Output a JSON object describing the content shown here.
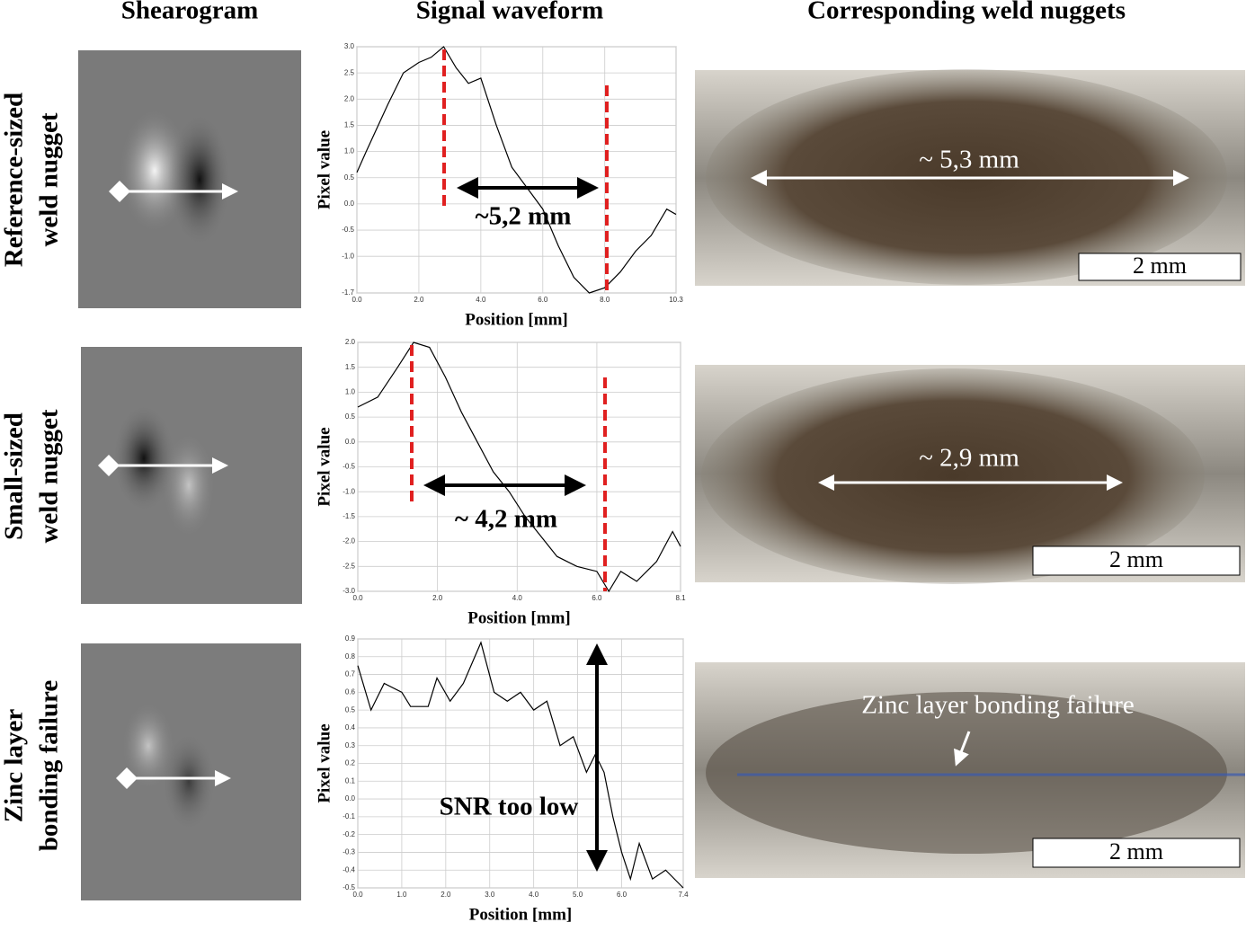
{
  "columns": [
    "Shearogram",
    "Signal waveform",
    "Corresponding weld nuggets"
  ],
  "rows": [
    [
      "Reference-sized",
      "weld nugget"
    ],
    [
      "Small-sized",
      "weld nugget"
    ],
    [
      "Zinc layer",
      "bonding failure"
    ]
  ],
  "nuggets": [
    {
      "label": "~ 5,3 mm",
      "scale": "2 mm"
    },
    {
      "label": "~ 2,9 mm",
      "scale": "2 mm"
    },
    {
      "label": "Zinc layer bonding failure",
      "scale": "2 mm"
    }
  ],
  "chart_data": [
    {
      "type": "line",
      "x_label": "Position [mm]",
      "y_label": "Pixel value",
      "annotation": "~5,2 mm",
      "color": "#000000",
      "grid": true,
      "xlim": [
        0,
        10.3
      ],
      "ylim": [
        -1.7,
        3.0
      ],
      "xticks": [
        {
          "value": 0,
          "label": "0.0"
        },
        {
          "value": 2,
          "label": "2.0"
        },
        {
          "value": 4,
          "label": "4.0"
        },
        {
          "value": 6,
          "label": "6.0"
        },
        {
          "value": 8,
          "label": "8.0"
        },
        10.3
      ],
      "yticks": [
        {
          "value": 3,
          "label": "3.0"
        },
        2.5,
        {
          "value": 2,
          "label": "2.0"
        },
        1.5,
        {
          "value": 1,
          "label": "1.0"
        },
        0.5,
        {
          "value": 0,
          "label": "0.0"
        },
        -0.5,
        {
          "value": -1,
          "label": "-1.0"
        },
        -1.7
      ],
      "x": [
        0,
        0.3,
        1.0,
        1.5,
        2.0,
        2.4,
        2.8,
        3.2,
        3.6,
        4.0,
        4.5,
        5.0,
        5.5,
        6.0,
        6.5,
        7.0,
        7.5,
        8.0,
        8.5,
        9.0,
        9.5,
        10.0,
        10.3
      ],
      "values": [
        0.6,
        1.0,
        1.9,
        2.5,
        2.7,
        2.8,
        3.0,
        2.6,
        2.3,
        2.4,
        1.5,
        0.7,
        0.3,
        -0.1,
        -0.8,
        -1.4,
        -1.7,
        -1.6,
        -1.3,
        -0.9,
        -0.6,
        -0.1,
        -0.2
      ]
    },
    {
      "type": "line",
      "x_label": "Position [mm]",
      "y_label": "Pixel value",
      "annotation": "~ 4,2 mm",
      "color": "#000000",
      "grid": true,
      "xlim": [
        0,
        8.1
      ],
      "ylim": [
        -3.0,
        2.0
      ],
      "xticks": [
        {
          "value": 0,
          "label": "0.0"
        },
        {
          "value": 2,
          "label": "2.0"
        },
        {
          "value": 4,
          "label": "4.0"
        },
        {
          "value": 6,
          "label": "6.0"
        },
        8.1
      ],
      "yticks": [
        {
          "value": 2,
          "label": "2.0"
        },
        1.5,
        {
          "value": 1,
          "label": "1.0"
        },
        0.5,
        {
          "value": 0,
          "label": "0.0"
        },
        -0.5,
        {
          "value": -1,
          "label": "-1.0"
        },
        -1.5,
        {
          "value": -2,
          "label": "-2.0"
        },
        -2.5,
        {
          "value": -3,
          "label": "-3.0"
        }
      ],
      "x": [
        0,
        0.5,
        1.0,
        1.4,
        1.8,
        2.2,
        2.6,
        3.0,
        3.4,
        3.8,
        4.2,
        4.6,
        5.0,
        5.5,
        6.0,
        6.3,
        6.6,
        7.0,
        7.5,
        7.9,
        8.1
      ],
      "values": [
        0.7,
        0.9,
        1.5,
        2.0,
        1.9,
        1.3,
        0.6,
        0.0,
        -0.6,
        -1.0,
        -1.5,
        -1.9,
        -2.3,
        -2.5,
        -2.6,
        -3.0,
        -2.6,
        -2.8,
        -2.4,
        -1.8,
        -2.1
      ]
    },
    {
      "type": "line",
      "x_label": "Position [mm]",
      "y_label": "Pixel value",
      "annotation": "SNR too low",
      "color": "#000000",
      "grid": true,
      "xlim": [
        0,
        7.4
      ],
      "ylim": [
        -0.5,
        0.9
      ],
      "xticks": [
        {
          "value": 0,
          "label": "0.0"
        },
        {
          "value": 1,
          "label": "1.0"
        },
        {
          "value": 2,
          "label": "2.0"
        },
        {
          "value": 3,
          "label": "3.0"
        },
        {
          "value": 4,
          "label": "4.0"
        },
        {
          "value": 5,
          "label": "5.0"
        },
        {
          "value": 6,
          "label": "6.0"
        },
        7.4
      ],
      "yticks": [
        0.9,
        0.8,
        0.7,
        0.6,
        0.5,
        0.4,
        0.3,
        0.2,
        0.1,
        {
          "value": 0,
          "label": "0.0"
        },
        -0.1,
        -0.2,
        -0.3,
        -0.4,
        -0.5
      ],
      "x": [
        0,
        0.3,
        0.6,
        1.0,
        1.2,
        1.6,
        1.8,
        2.1,
        2.4,
        2.8,
        3.1,
        3.4,
        3.7,
        4.0,
        4.3,
        4.6,
        4.9,
        5.2,
        5.4,
        5.6,
        5.8,
        6.0,
        6.2,
        6.4,
        6.7,
        7.0,
        7.4
      ],
      "values": [
        0.75,
        0.5,
        0.65,
        0.6,
        0.52,
        0.52,
        0.68,
        0.55,
        0.65,
        0.88,
        0.6,
        0.55,
        0.6,
        0.5,
        0.55,
        0.3,
        0.35,
        0.15,
        0.25,
        0.15,
        -0.1,
        -0.3,
        -0.45,
        -0.25,
        -0.45,
        -0.4,
        -0.5
      ]
    }
  ]
}
